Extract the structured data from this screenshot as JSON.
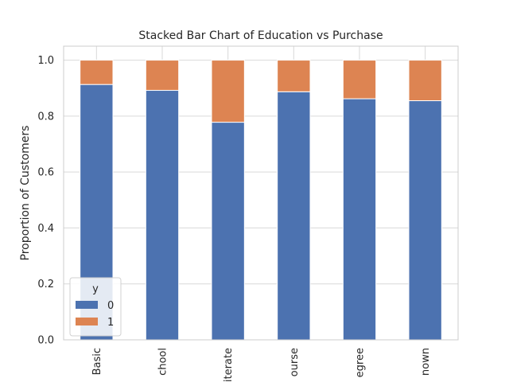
{
  "chart_data": {
    "type": "bar",
    "stacked": true,
    "title": "Stacked Bar Chart of Education vs Purchase",
    "xlabel": "",
    "ylabel": "Proportion of Customers",
    "ylim": [
      0,
      1.05
    ],
    "yticks": [
      "0.0",
      "0.2",
      "0.4",
      "0.6",
      "0.8",
      "1.0"
    ],
    "ytick_values": [
      0.0,
      0.2,
      0.4,
      0.6,
      0.8,
      1.0
    ],
    "categories": [
      "Basic",
      "chool",
      "iterate",
      "ourse",
      "egree",
      "nown"
    ],
    "grid": true,
    "legend": {
      "title": "y",
      "placement": "lower-left"
    },
    "series": [
      {
        "name": "0",
        "color": "#4c72b0",
        "values": [
          0.913,
          0.892,
          0.778,
          0.887,
          0.862,
          0.855
        ]
      },
      {
        "name": "1",
        "color": "#dd8452",
        "values": [
          0.087,
          0.108,
          0.222,
          0.113,
          0.138,
          0.145
        ]
      }
    ]
  }
}
